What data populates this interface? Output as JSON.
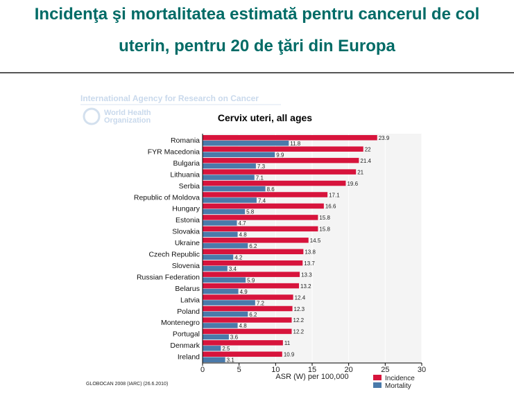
{
  "slide": {
    "title_line1": "Incidenţa şi mortalitatea estimată pentru cancerul de col",
    "title_line2": "uterin,  pentru 20 de ţări din Europa"
  },
  "watermark": {
    "line1": "International Agency for Research on Cancer",
    "line2": "World Health",
    "line3": "Organization"
  },
  "source": "GLOBOCAN 2008 (IARC) (26.6.2010)",
  "chart_data": {
    "type": "bar",
    "orientation": "horizontal",
    "title": "Cervix uteri, all ages",
    "xlabel": "ASR (W) per 100,000",
    "xlim": [
      0,
      30
    ],
    "xticks": [
      0,
      5,
      10,
      15,
      20,
      25,
      30
    ],
    "grid": true,
    "legend_placement": "bottom-right",
    "categories": [
      "Romania",
      "FYR Macedonia",
      "Bulgaria",
      "Lithuania",
      "Serbia",
      "Republic of Moldova",
      "Hungary",
      "Estonia",
      "Slovakia",
      "Ukraine",
      "Czech Republic",
      "Slovenia",
      "Russian Federation",
      "Belarus",
      "Latvia",
      "Poland",
      "Montenegro",
      "Portugal",
      "Denmark",
      "Ireland"
    ],
    "series": [
      {
        "name": "Incidence",
        "color": "#d7143c",
        "values": [
          23.9,
          22,
          21.4,
          21,
          19.6,
          17.1,
          16.6,
          15.8,
          15.8,
          14.5,
          13.8,
          13.7,
          13.3,
          13.2,
          12.4,
          12.3,
          12.2,
          12.2,
          11,
          10.9
        ]
      },
      {
        "name": "Mortality",
        "color": "#4a7aaa",
        "values": [
          11.8,
          9.9,
          7.3,
          7.1,
          8.6,
          7.4,
          5.8,
          4.7,
          4.8,
          6.2,
          4.2,
          3.4,
          5.9,
          4.9,
          7.2,
          6.2,
          4.8,
          3.6,
          2.5,
          3.1
        ]
      }
    ]
  }
}
